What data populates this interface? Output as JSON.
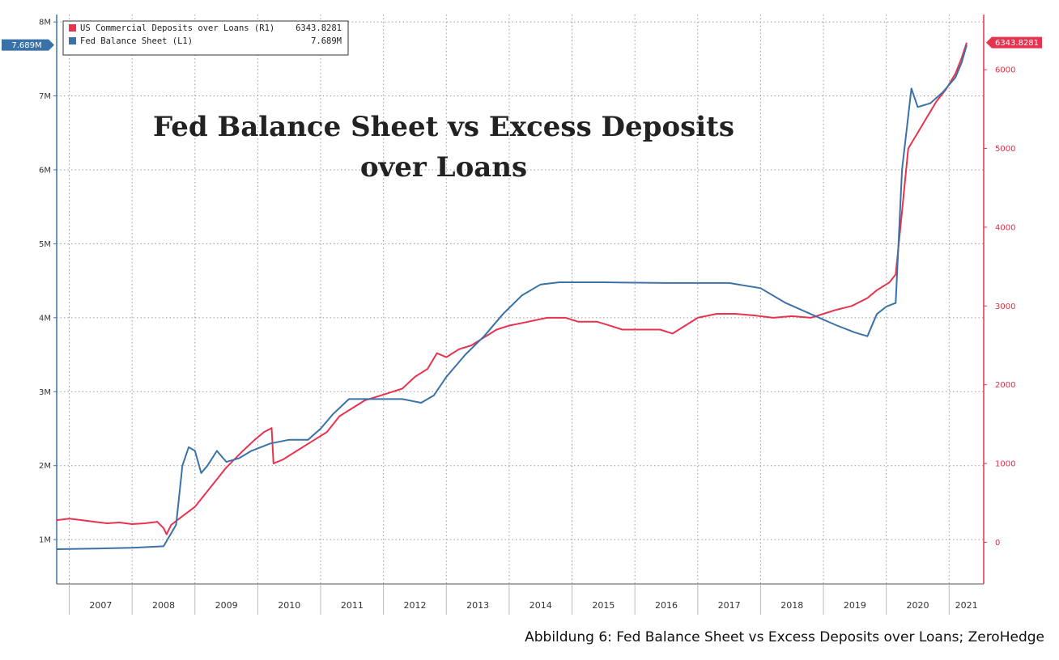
{
  "chart_data": {
    "type": "line",
    "title_lines": [
      "Fed Balance Sheet vs Excess Deposits",
      "over Loans"
    ],
    "x_labels": [
      "2007",
      "2008",
      "2009",
      "2010",
      "2011",
      "2012",
      "2013",
      "2014",
      "2015",
      "2016",
      "2017",
      "2018",
      "2019",
      "2020",
      "2021"
    ],
    "x_domain": [
      2006.8,
      2021.55
    ],
    "left_axis": {
      "ticks": [
        "1M",
        "2M",
        "3M",
        "4M",
        "5M",
        "6M",
        "7M",
        "8M"
      ],
      "tick_values": [
        1,
        2,
        3,
        4,
        5,
        6,
        7,
        8
      ],
      "range": [
        0.4,
        8.1
      ],
      "color": "#333333"
    },
    "right_axis": {
      "ticks": [
        "0",
        "1000",
        "2000",
        "3000",
        "4000",
        "5000",
        "6000"
      ],
      "tick_values": [
        0,
        1000,
        2000,
        3000,
        4000,
        5000,
        6000
      ],
      "range": [
        -530,
        6700
      ],
      "color": "#d8304a"
    },
    "grid": true,
    "legend_position": "top-left",
    "series": [
      {
        "name": "US Commercial Deposits over Loans (R1)",
        "last_value": "6343.8281",
        "axis": "right",
        "color": "#e8334f",
        "points": [
          [
            2006.8,
            280
          ],
          [
            2007.0,
            300
          ],
          [
            2007.2,
            280
          ],
          [
            2007.4,
            260
          ],
          [
            2007.6,
            240
          ],
          [
            2007.8,
            250
          ],
          [
            2008.0,
            230
          ],
          [
            2008.2,
            240
          ],
          [
            2008.4,
            260
          ],
          [
            2008.5,
            180
          ],
          [
            2008.55,
            100
          ],
          [
            2008.62,
            220
          ],
          [
            2008.75,
            300
          ],
          [
            2009.0,
            450
          ],
          [
            2009.25,
            700
          ],
          [
            2009.5,
            950
          ],
          [
            2009.75,
            1150
          ],
          [
            2009.95,
            1300
          ],
          [
            2010.1,
            1400
          ],
          [
            2010.22,
            1450
          ],
          [
            2010.25,
            1000
          ],
          [
            2010.4,
            1050
          ],
          [
            2010.6,
            1150
          ],
          [
            2010.9,
            1300
          ],
          [
            2011.1,
            1400
          ],
          [
            2011.3,
            1600
          ],
          [
            2011.5,
            1700
          ],
          [
            2011.7,
            1800
          ],
          [
            2011.9,
            1850
          ],
          [
            2012.1,
            1900
          ],
          [
            2012.3,
            1950
          ],
          [
            2012.5,
            2100
          ],
          [
            2012.7,
            2200
          ],
          [
            2012.85,
            2400
          ],
          [
            2013.0,
            2350
          ],
          [
            2013.2,
            2450
          ],
          [
            2013.4,
            2500
          ],
          [
            2013.6,
            2600
          ],
          [
            2013.8,
            2700
          ],
          [
            2014.0,
            2750
          ],
          [
            2014.3,
            2800
          ],
          [
            2014.6,
            2850
          ],
          [
            2014.9,
            2850
          ],
          [
            2015.1,
            2800
          ],
          [
            2015.4,
            2800
          ],
          [
            2015.6,
            2750
          ],
          [
            2015.8,
            2700
          ],
          [
            2016.0,
            2700
          ],
          [
            2016.2,
            2700
          ],
          [
            2016.4,
            2700
          ],
          [
            2016.6,
            2650
          ],
          [
            2016.8,
            2750
          ],
          [
            2017.0,
            2850
          ],
          [
            2017.3,
            2900
          ],
          [
            2017.6,
            2900
          ],
          [
            2017.9,
            2880
          ],
          [
            2018.2,
            2850
          ],
          [
            2018.5,
            2870
          ],
          [
            2018.8,
            2850
          ],
          [
            2019.0,
            2900
          ],
          [
            2019.2,
            2950
          ],
          [
            2019.45,
            3000
          ],
          [
            2019.7,
            3100
          ],
          [
            2019.85,
            3200
          ],
          [
            2020.05,
            3300
          ],
          [
            2020.15,
            3400
          ],
          [
            2020.25,
            4200
          ],
          [
            2020.35,
            5000
          ],
          [
            2020.5,
            5200
          ],
          [
            2020.65,
            5400
          ],
          [
            2020.8,
            5600
          ],
          [
            2020.95,
            5750
          ],
          [
            2021.1,
            5950
          ],
          [
            2021.2,
            6150
          ],
          [
            2021.28,
            6343.8281
          ]
        ]
      },
      {
        "name": "Fed Balance Sheet (L1)",
        "last_value": "7.689M",
        "axis": "left",
        "color": "#3a72a8",
        "points": [
          [
            2006.8,
            0.87
          ],
          [
            2007.5,
            0.88
          ],
          [
            2008.0,
            0.89
          ],
          [
            2008.5,
            0.91
          ],
          [
            2008.7,
            1.2
          ],
          [
            2008.8,
            2.0
          ],
          [
            2008.9,
            2.25
          ],
          [
            2009.0,
            2.2
          ],
          [
            2009.1,
            1.9
          ],
          [
            2009.2,
            2.0
          ],
          [
            2009.35,
            2.2
          ],
          [
            2009.5,
            2.05
          ],
          [
            2009.7,
            2.1
          ],
          [
            2009.9,
            2.2
          ],
          [
            2010.2,
            2.3
          ],
          [
            2010.5,
            2.35
          ],
          [
            2010.8,
            2.35
          ],
          [
            2011.0,
            2.5
          ],
          [
            2011.2,
            2.7
          ],
          [
            2011.45,
            2.9
          ],
          [
            2011.7,
            2.9
          ],
          [
            2012.0,
            2.9
          ],
          [
            2012.3,
            2.9
          ],
          [
            2012.6,
            2.85
          ],
          [
            2012.8,
            2.95
          ],
          [
            2013.0,
            3.2
          ],
          [
            2013.3,
            3.5
          ],
          [
            2013.6,
            3.75
          ],
          [
            2013.9,
            4.05
          ],
          [
            2014.2,
            4.3
          ],
          [
            2014.5,
            4.45
          ],
          [
            2014.8,
            4.48
          ],
          [
            2015.5,
            4.48
          ],
          [
            2016.5,
            4.47
          ],
          [
            2017.5,
            4.47
          ],
          [
            2018.0,
            4.4
          ],
          [
            2018.4,
            4.2
          ],
          [
            2018.8,
            4.05
          ],
          [
            2019.2,
            3.9
          ],
          [
            2019.5,
            3.8
          ],
          [
            2019.7,
            3.75
          ],
          [
            2019.85,
            4.05
          ],
          [
            2020.0,
            4.15
          ],
          [
            2020.15,
            4.2
          ],
          [
            2020.25,
            6.0
          ],
          [
            2020.4,
            7.1
          ],
          [
            2020.5,
            6.85
          ],
          [
            2020.7,
            6.9
          ],
          [
            2020.9,
            7.05
          ],
          [
            2021.1,
            7.25
          ],
          [
            2021.2,
            7.45
          ],
          [
            2021.28,
            7.689
          ]
        ]
      }
    ]
  },
  "caption": "Abbildung 6: Fed Balance Sheet vs Excess Deposits over Loans; ZeroHedge"
}
